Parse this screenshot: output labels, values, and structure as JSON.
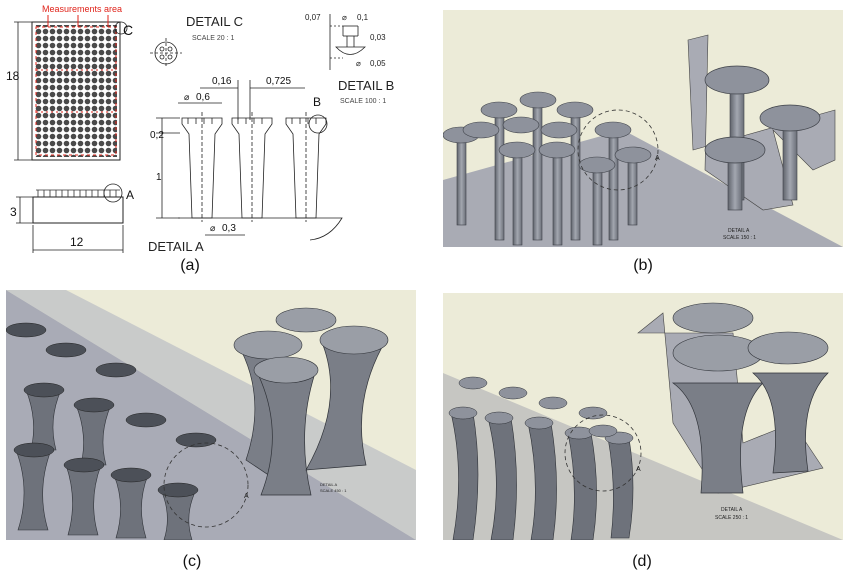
{
  "panel_a": {
    "caption": "(a)",
    "measurements_area": "Measurements area",
    "corner_c": "C",
    "dim_height": "18",
    "dim_width": "12",
    "dim_base": "3",
    "label_a": "A",
    "detail_c_title": "DETAIL C",
    "detail_c_scale": "SCALE 20 : 1",
    "detail_b_title": "DETAIL B",
    "detail_b_scale": "SCALE 100 : 1",
    "detail_a_title": "DETAIL A",
    "label_b": "B",
    "dim_007": "0,07",
    "dim_01": "0,1",
    "dim_003": "0,03",
    "dim_005": "0,05",
    "dim_016": "0,16",
    "dim_0725": "0,725",
    "dim_06": "0,6",
    "dim_02": "0,2",
    "dim_1": "1",
    "dim_03": "0,3",
    "diam_symbol": "⌀"
  },
  "panel_b": {
    "caption": "(b)",
    "detail_title": "DETAIL  A",
    "detail_scale": "SCALE 150 : 1",
    "marker": "A"
  },
  "panel_c": {
    "caption": "(c)",
    "detail_title": "DETAIL  A",
    "detail_scale": "SCALE 450 : 1",
    "marker": "A"
  },
  "panel_d": {
    "caption": "(d)",
    "detail_title": "DETAIL  A",
    "detail_scale": "SCALE 250 : 1",
    "marker": "A"
  },
  "colors": {
    "background": "#ecebd8",
    "plate": "#a6a9b4",
    "metal": "#8e929c",
    "metal_dark": "#5f636c",
    "annotation_red": "#e0241b"
  }
}
